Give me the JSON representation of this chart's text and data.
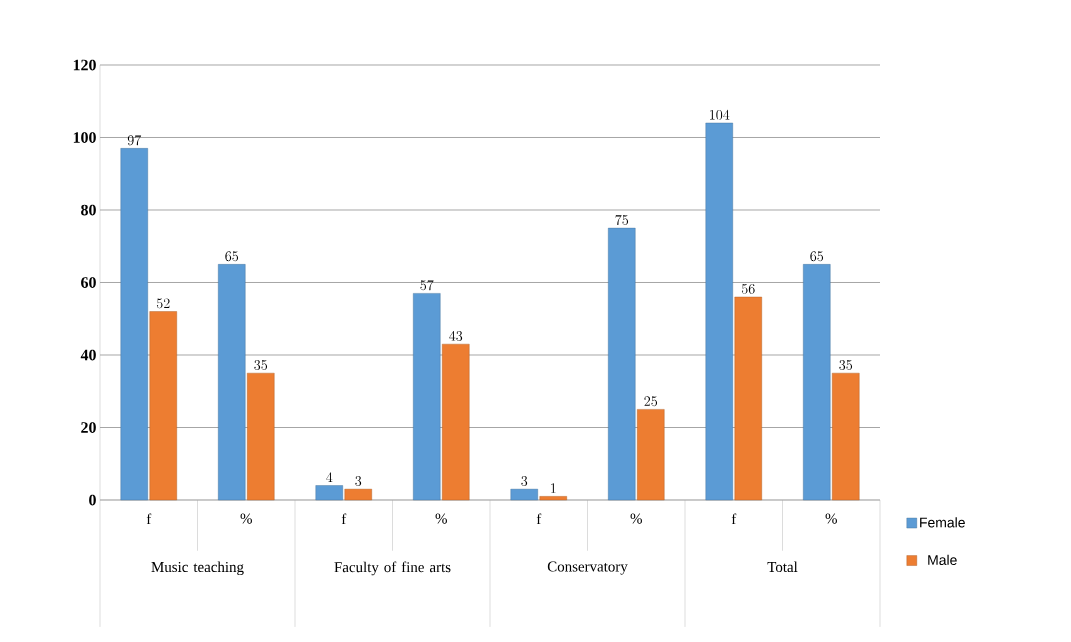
{
  "chart_data": {
    "type": "bar",
    "categories": [
      "f",
      "%",
      "f",
      "%",
      "f",
      "%",
      "f",
      "%"
    ],
    "series": [
      {
        "name": "Female",
        "color": "#5b9bd5",
        "values": [
          97,
          65,
          4,
          57,
          3,
          75,
          104,
          65
        ]
      },
      {
        "name": "Male",
        "color": "#ed7d31",
        "values": [
          52,
          35,
          3,
          43,
          1,
          25,
          56,
          35
        ]
      }
    ],
    "annotations": [
      "Music teaching",
      "Faculty of fine arts",
      "Conservatory",
      "Total"
    ],
    "ylim": [
      0,
      120
    ],
    "yticks": [
      0,
      20,
      40,
      60,
      80,
      100,
      120
    ],
    "grid": "y",
    "legend": "right",
    "data_labels": true
  }
}
